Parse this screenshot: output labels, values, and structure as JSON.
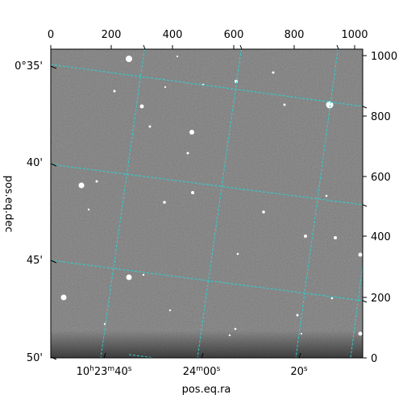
{
  "image": {
    "type": "astronomical-image",
    "colormap": "grayscale",
    "grid_color": "#2ad4d4",
    "frame_color": "#000000"
  },
  "axes": {
    "xlabel": "pos.eq.ra",
    "ylabel": "pos.eq.dec",
    "pixel_x_ticks": [
      "0",
      "200",
      "400",
      "600",
      "800",
      "1000"
    ],
    "pixel_y_ticks": [
      "0",
      "200",
      "400",
      "600",
      "800",
      "1000"
    ],
    "ra_ticks": [
      {
        "h": "10",
        "m": "23",
        "s": "40"
      },
      {
        "h": "",
        "m": "24",
        "s": "00"
      },
      {
        "h": "",
        "m": "",
        "s": "20"
      }
    ],
    "dec_ticks": [
      "0°35'",
      "40'",
      "45'",
      "50'"
    ]
  }
}
